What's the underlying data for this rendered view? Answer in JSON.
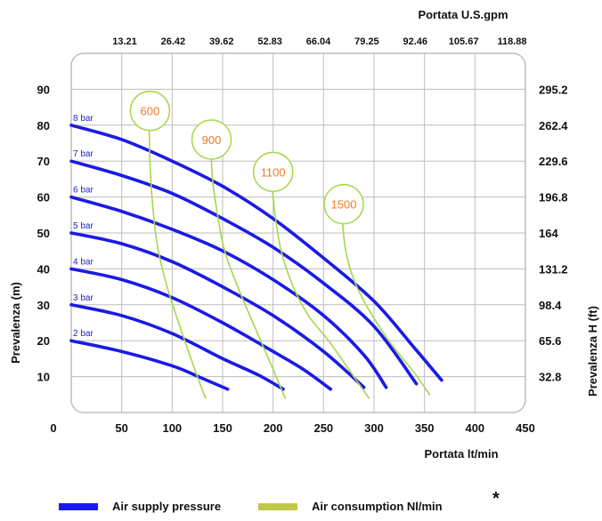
{
  "chart_data": {
    "type": "line",
    "x_axis": {
      "label": "Portata  lt/min",
      "ticks": [
        "0",
        "50",
        "100",
        "150",
        "200",
        "250",
        "300",
        "350",
        "400",
        "450"
      ],
      "range": [
        0,
        450
      ]
    },
    "x2_axis": {
      "label": "Portata U.S.gpm",
      "ticks": [
        "13.21",
        "26.42",
        "39.62",
        "52.83",
        "66.04",
        "79.25",
        "92.46",
        "105.67",
        "118.88"
      ]
    },
    "y_axis": {
      "label": "Prevalenza (m)",
      "ticks": [
        "10",
        "20",
        "30",
        "40",
        "50",
        "60",
        "70",
        "80",
        "90"
      ],
      "range": [
        0,
        100
      ]
    },
    "y2_axis": {
      "label": "Prevalenza H (ft)",
      "ticks": [
        "32.8",
        "65.6",
        "98.4",
        "131.2",
        "164",
        "196.8",
        "229.6",
        "262.4",
        "295.2"
      ]
    },
    "grid": true,
    "series": [
      {
        "name": "2 bar",
        "kind": "air_supply_pressure",
        "color": "#1a1ae6",
        "x": [
          0,
          50,
          100,
          130,
          155
        ],
        "y": [
          20,
          17,
          13,
          9.5,
          6.5
        ]
      },
      {
        "name": "3 bar",
        "kind": "air_supply_pressure",
        "color": "#1a1ae6",
        "x": [
          0,
          50,
          100,
          150,
          185,
          210
        ],
        "y": [
          30,
          27,
          22,
          15,
          10.5,
          6.5
        ]
      },
      {
        "name": "4 bar",
        "kind": "air_supply_pressure",
        "color": "#1a1ae6",
        "x": [
          0,
          50,
          100,
          150,
          200,
          230,
          257
        ],
        "y": [
          40,
          37,
          32,
          25,
          17,
          12,
          6.5
        ]
      },
      {
        "name": "5 bar",
        "kind": "air_supply_pressure",
        "color": "#1a1ae6",
        "x": [
          0,
          50,
          100,
          150,
          200,
          250,
          290
        ],
        "y": [
          50,
          47,
          42,
          35,
          27,
          17,
          7
        ]
      },
      {
        "name": "6 bar",
        "kind": "air_supply_pressure",
        "color": "#1a1ae6",
        "x": [
          0,
          50,
          100,
          150,
          200,
          250,
          290,
          312
        ],
        "y": [
          60,
          56,
          51,
          45,
          37,
          27,
          16,
          7
        ]
      },
      {
        "name": "7 bar",
        "kind": "air_supply_pressure",
        "color": "#1a1ae6",
        "x": [
          0,
          50,
          100,
          150,
          200,
          250,
          300,
          342
        ],
        "y": [
          70,
          66,
          61,
          54,
          46,
          36,
          24,
          8
        ]
      },
      {
        "name": "8 bar",
        "kind": "air_supply_pressure",
        "color": "#1a1ae6",
        "x": [
          0,
          50,
          100,
          150,
          200,
          250,
          300,
          340,
          367
        ],
        "y": [
          80,
          76,
          70,
          63,
          54,
          43,
          31,
          18,
          9
        ]
      },
      {
        "name": "600",
        "kind": "air_consumption",
        "color": "#a8d64a",
        "x": [
          77,
          78,
          80,
          85,
          95,
          110,
          125,
          133
        ],
        "y": [
          83,
          70,
          60,
          47,
          35,
          22,
          10,
          4
        ]
      },
      {
        "name": "900",
        "kind": "air_consumption",
        "color": "#a8d64a",
        "x": [
          138,
          140,
          145,
          152,
          165,
          180,
          200,
          212
        ],
        "y": [
          76,
          65,
          55,
          45,
          35,
          25,
          12,
          4
        ]
      },
      {
        "name": "1100",
        "kind": "air_consumption",
        "color": "#a8d64a",
        "x": [
          198,
          202,
          208,
          220,
          235,
          255,
          275,
          295
        ],
        "y": [
          66,
          55,
          45,
          35,
          27,
          20,
          12,
          4
        ]
      },
      {
        "name": "1500",
        "kind": "air_consumption",
        "color": "#a8d64a",
        "x": [
          268,
          272,
          280,
          292,
          305,
          320,
          340,
          355
        ],
        "y": [
          55,
          45,
          37,
          30,
          24,
          18,
          11,
          5
        ]
      }
    ],
    "bubble_labels": [
      {
        "text": "600",
        "x": 78,
        "y": 84
      },
      {
        "text": "900",
        "x": 139,
        "y": 76
      },
      {
        "text": "1100",
        "x": 200,
        "y": 67
      },
      {
        "text": "1500",
        "x": 270,
        "y": 58
      }
    ],
    "legend": [
      {
        "label": "Air supply pressure",
        "color": "#1a1ae6"
      },
      {
        "label": "Air consumption Nl/min",
        "color": "#c0c84a"
      }
    ],
    "note": "*"
  }
}
